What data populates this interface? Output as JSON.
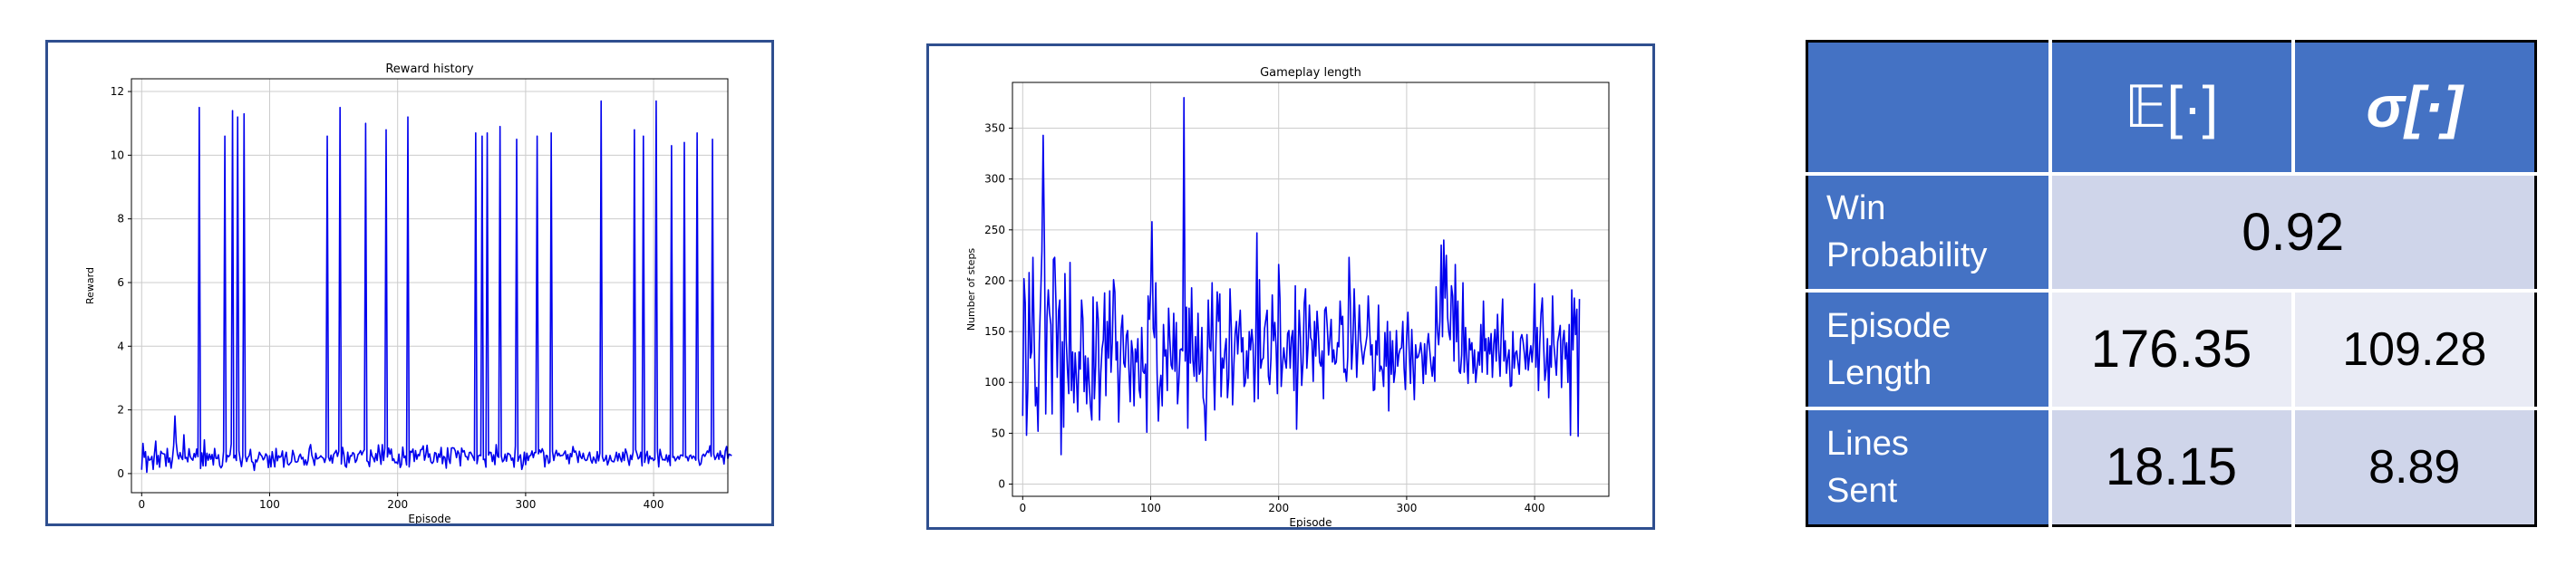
{
  "colors": {
    "line": "#0000ee",
    "panel_border": "#2f4f8f",
    "table_header": "#4472c4",
    "table_dark": "#cfd5ea",
    "table_light": "#e9ebf5"
  },
  "chart_data": [
    {
      "type": "line",
      "title": "Reward history",
      "xlabel": "Episode",
      "ylabel": "Reward",
      "xlim": [
        -8,
        458
      ],
      "ylim": [
        -0.6,
        12.4
      ],
      "xticks": [
        "0",
        "100",
        "200",
        "300",
        "400"
      ],
      "yticks": [
        "0",
        "2",
        "4",
        "6",
        "8",
        "10",
        "12"
      ],
      "grid": true,
      "legend": "none",
      "series": [
        {
          "values": [
            0.12,
            0.95,
            0.51,
            0.69,
            0.04,
            0.54,
            0.42,
            0.44,
            0.54,
            0.13,
            0.63,
            1.02,
            0.29,
            0.57,
            0.2,
            0.7,
            0.64,
            0.62,
            0.61,
            0.23,
            0.79,
            0.35,
            0.49,
            0.17,
            0.45,
            0.88,
            1.81,
            0.97,
            0.6,
            0.46,
            0.66,
            0.51,
            0.44,
            1.22,
            0.48,
            0.51,
            0.37,
            0.78,
            0.53,
            0.46,
            0.42,
            0.63,
            0.51,
            0.77,
            0.53,
            11.5,
            0.16,
            0.65,
            0.24,
            1.06,
            0.24,
            0.64,
            0.42,
            0.61,
            0.45,
            0.6,
            0.27,
            0.79,
            0.48,
            0.47,
            0.59,
            0.25,
            0.18,
            0.25,
            0.7,
            10.6,
            0.37,
            0.57,
            0.53,
            0.59,
            0.93,
            11.4,
            0.49,
            0.57,
            0.41,
            11.2,
            0.72,
            0.43,
            0.22,
            0.54,
            11.3,
            0.56,
            0.38,
            0.51,
            0.56,
            0.76,
            0.38,
            0.35,
            0.1,
            0.43,
            0.37,
            0.48,
            0.67,
            0.59,
            0.54,
            0.43,
            0.49,
            0.62,
            0.56,
            0.19,
            0.56,
            0.21,
            0.69,
            0.44,
            0.21,
            0.79,
            0.4,
            0.56,
            0.51,
            0.54,
            0.71,
            0.2,
            0.52,
            0.67,
            0.31,
            0.27,
            0.32,
            0.37,
            0.73,
            0.59,
            0.37,
            0.36,
            0.38,
            0.54,
            0.61,
            0.46,
            0.51,
            0.27,
            0.43,
            0.27,
            0.41,
            0.78,
            0.91,
            0.57,
            0.45,
            0.26,
            0.64,
            0.46,
            0.48,
            0.51,
            0.56,
            0.51,
            0.48,
            0.35,
            0.51,
            10.6,
            0.51,
            0.4,
            0.58,
            0.33,
            0.6,
            0.66,
            0.73,
            0.54,
            0.7,
            11.5,
            0.3,
            0.82,
            0.6,
            0.24,
            0.2,
            0.67,
            0.34,
            0.56,
            0.55,
            0.66,
            0.62,
            0.35,
            0.42,
            0.6,
            0.64,
            0.72,
            0.59,
            0.69,
            0.75,
            11.0,
            0.4,
            0.37,
            0.22,
            0.74,
            0.56,
            0.49,
            0.37,
            0.63,
            0.41,
            0.9,
            0.61,
            0.29,
            0.91,
            0.41,
            0.8,
            10.8,
            0.52,
            0.8,
            0.61,
            0.77,
            0.41,
            0.46,
            0.34,
            0.36,
            0.31,
            0.61,
            0.19,
            0.29,
            0.83,
            0.5,
            0.55,
            0.27,
            11.2,
            0.21,
            0.7,
            0.67,
            0.77,
            0.38,
            0.72,
            0.45,
            0.6,
            0.56,
            0.75,
            0.76,
            0.87,
            0.42,
            0.59,
            0.89,
            0.51,
            0.62,
            0.37,
            0.32,
            0.38,
            0.66,
            0.64,
            0.36,
            0.62,
            0.51,
            0.82,
            0.31,
            0.54,
            0.5,
            0.17,
            0.81,
            0.45,
            0.32,
            0.8,
            0.81,
            0.8,
            0.72,
            0.5,
            0.71,
            0.63,
            0.24,
            0.8,
            0.68,
            0.72,
            0.54,
            0.53,
            0.43,
            0.66,
            0.67,
            0.59,
            0.51,
            0.41,
            10.7,
            0.31,
            0.55,
            0.58,
            0.56,
            10.6,
            0.44,
            0.45,
            0.2,
            10.7,
            0.58,
            0.67,
            0.66,
            0.38,
            0.59,
            0.28,
            0.91,
            0.55,
            0.51,
            10.9,
            0.55,
            0.37,
            0.42,
            0.61,
            0.39,
            0.64,
            0.62,
            0.58,
            0.42,
            0.49,
            0.2,
            0.87,
            10.5,
            0.39,
            0.51,
            0.59,
            0.13,
            0.28,
            0.67,
            0.28,
            0.64,
            0.41,
            0.56,
            0.57,
            0.71,
            0.5,
            0.66,
            0.66,
            10.6,
            0.62,
            0.74,
            0.66,
            0.78,
            0.67,
            0.21,
            0.57,
            0.56,
            0.32,
            0.37,
            10.7,
            0.7,
            0.41,
            0.61,
            0.73,
            0.56,
            0.64,
            0.55,
            0.57,
            0.57,
            0.64,
            0.71,
            0.45,
            0.6,
            0.31,
            0.63,
            0.53,
            0.85,
            0.67,
            0.71,
            0.58,
            0.35,
            0.7,
            0.53,
            0.47,
            0.64,
            0.46,
            0.41,
            0.43,
            0.57,
            0.67,
            0.42,
            0.33,
            0.52,
            0.43,
            0.33,
            0.69,
            0.4,
            0.64,
            11.7,
            0.53,
            0.39,
            0.44,
            0.57,
            0.27,
            0.4,
            0.57,
            0.41,
            0.38,
            0.37,
            0.5,
            0.67,
            0.4,
            0.63,
            0.48,
            0.37,
            0.67,
            0.41,
            0.77,
            0.65,
            0.44,
            0.26,
            0.58,
            0.44,
            0.68,
            10.8,
            0.75,
            0.62,
            0.46,
            0.51,
            0.67,
            0.24,
            10.6,
            0.35,
            0.56,
            0.7,
            0.32,
            0.55,
            0.46,
            0.49,
            0.41,
            0.45,
            11.7,
            0.71,
            0.21,
            0.76,
            0.56,
            0.43,
            0.44,
            0.42,
            0.59,
            0.37,
            0.57,
            0.25,
            10.3,
            0.51,
            0.53,
            0.4,
            0.47,
            0.54,
            0.45,
            0.58,
            0.58,
            0.55,
            10.4,
            0.51,
            0.53,
            0.4,
            0.55,
            0.58,
            0.47,
            0.55,
            0.51,
            0.42,
            10.7,
            0.47,
            0.26,
            0.31,
            0.56,
            0.61,
            0.54,
            0.62,
            0.71,
            0.66,
            0.87,
            0.54,
            10.5,
            0.61,
            0.44,
            0.52,
            0.64,
            0.45,
            0.71,
            0.51,
            0.57,
            0.3,
            0.71,
            0.85,
            0.47,
            0.61,
            0.59,
            0.56
          ]
        }
      ]
    },
    {
      "type": "line",
      "title": "Gameplay length",
      "xlabel": "Episode",
      "ylabel": "Number of steps",
      "xlim": [
        -8,
        458
      ],
      "ylim": [
        -12,
        395
      ],
      "xticks": [
        "0",
        "100",
        "200",
        "300",
        "400"
      ],
      "yticks": [
        "0",
        "50",
        "100",
        "150",
        "200",
        "250",
        "300",
        "350"
      ],
      "grid": true,
      "legend": "none",
      "series": [
        {
          "values": [
            67,
            202,
            178,
            48,
            94,
            208,
            124,
            130,
            223,
            141,
            77,
            95,
            52,
            139,
            182,
            229,
            343,
            234,
            69,
            165,
            191,
            168,
            157,
            69,
            221,
            223,
            178,
            105,
            170,
            181,
            29,
            140,
            56,
            207,
            142,
            112,
            89,
            218,
            92,
            130,
            80,
            129,
            104,
            71,
            130,
            113,
            181,
            163,
            91,
            126,
            79,
            124,
            98,
            76,
            63,
            184,
            84,
            116,
            179,
            162,
            63,
            109,
            133,
            142,
            188,
            87,
            160,
            124,
            190,
            110,
            139,
            201,
            189,
            122,
            140,
            61,
            110,
            153,
            166,
            119,
            115,
            146,
            151,
            113,
            81,
            141,
            129,
            77,
            133,
            120,
            143,
            93,
            85,
            154,
            111,
            109,
            118,
            51,
            185,
            162,
            190,
            258,
            153,
            144,
            198,
            109,
            62,
            95,
            107,
            77,
            157,
            126,
            132,
            92,
            173,
            142,
            117,
            113,
            168,
            111,
            159,
            79,
            100,
            132,
            133,
            131,
            380,
            121,
            174,
            55,
            173,
            119,
            193,
            122,
            106,
            145,
            101,
            168,
            108,
            112,
            154,
            85,
            77,
            43,
            110,
            181,
            135,
            131,
            198,
            119,
            73,
            140,
            189,
            160,
            187,
            86,
            124,
            114,
            132,
            143,
            85,
            104,
            192,
            154,
            78,
            117,
            148,
            160,
            128,
            154,
            171,
            130,
            144,
            96,
            100,
            131,
            104,
            150,
            132,
            152,
            137,
            81,
            127,
            247,
            84,
            201,
            114,
            122,
            124,
            153,
            162,
            171,
            106,
            98,
            124,
            186,
            141,
            159,
            135,
            89,
            216,
            183,
            96,
            117,
            134,
            121,
            114,
            148,
            151,
            114,
            144,
            151,
            92,
            195,
            54,
            114,
            171,
            144,
            97,
            119,
            178,
            192,
            114,
            137,
            176,
            144,
            141,
            101,
            160,
            126,
            170,
            149,
            120,
            116,
            131,
            84,
            171,
            174,
            154,
            127,
            143,
            162,
            120,
            132,
            118,
            120,
            139,
            135,
            180,
            157,
            165,
            110,
            113,
            101,
            125,
            223,
            180,
            113,
            139,
            192,
            151,
            105,
            138,
            176,
            142,
            130,
            118,
            130,
            137,
            146,
            185,
            155,
            127,
            137,
            92,
            93,
            141,
            127,
            176,
            111,
            116,
            112,
            96,
            149,
            116,
            160,
            72,
            150,
            108,
            141,
            100,
            111,
            151,
            116,
            128,
            133,
            134,
            160,
            114,
            93,
            145,
            169,
            131,
            99,
            152,
            117,
            83,
            137,
            124,
            125,
            130,
            139,
            126,
            99,
            138,
            108,
            136,
            148,
            132,
            117,
            106,
            125,
            101,
            194,
            152,
            137,
            160,
            235,
            145,
            240,
            183,
            225,
            164,
            149,
            142,
            195,
            185,
            121,
            216,
            140,
            180,
            111,
            109,
            127,
            198,
            110,
            154,
            123,
            99,
            143,
            132,
            139,
            109,
            132,
            100,
            114,
            130,
            117,
            157,
            110,
            180,
            131,
            143,
            108,
            144,
            128,
            148,
            105,
            137,
            152,
            121,
            167,
            131,
            106,
            153,
            182,
            121,
            141,
            109,
            124,
            132,
            96,
            97,
            150,
            114,
            129,
            131,
            119,
            108,
            143,
            147,
            140,
            128,
            113,
            147,
            112,
            126,
            136,
            120,
            140,
            197,
            115,
            154,
            92,
            138,
            168,
            183,
            138,
            102,
            113,
            143,
            85,
            136,
            115,
            185,
            138,
            123,
            107,
            140,
            147,
            156,
            95,
            141,
            151,
            123,
            139,
            100,
            157,
            48,
            191,
            132,
            183,
            147,
            172,
            47,
            182
          ]
        }
      ]
    }
  ],
  "table": {
    "header": [
      "",
      "𝔼[·]",
      "σ[·]"
    ],
    "rows": [
      {
        "label_lines": [
          "Win",
          "Probability"
        ],
        "mean": "0.92",
        "std": ""
      },
      {
        "label_lines": [
          "Episode",
          "Length"
        ],
        "mean": "176.35",
        "std": "109.28"
      },
      {
        "label_lines": [
          "Lines",
          "Sent"
        ],
        "mean": "18.15",
        "std": "8.89"
      }
    ]
  }
}
